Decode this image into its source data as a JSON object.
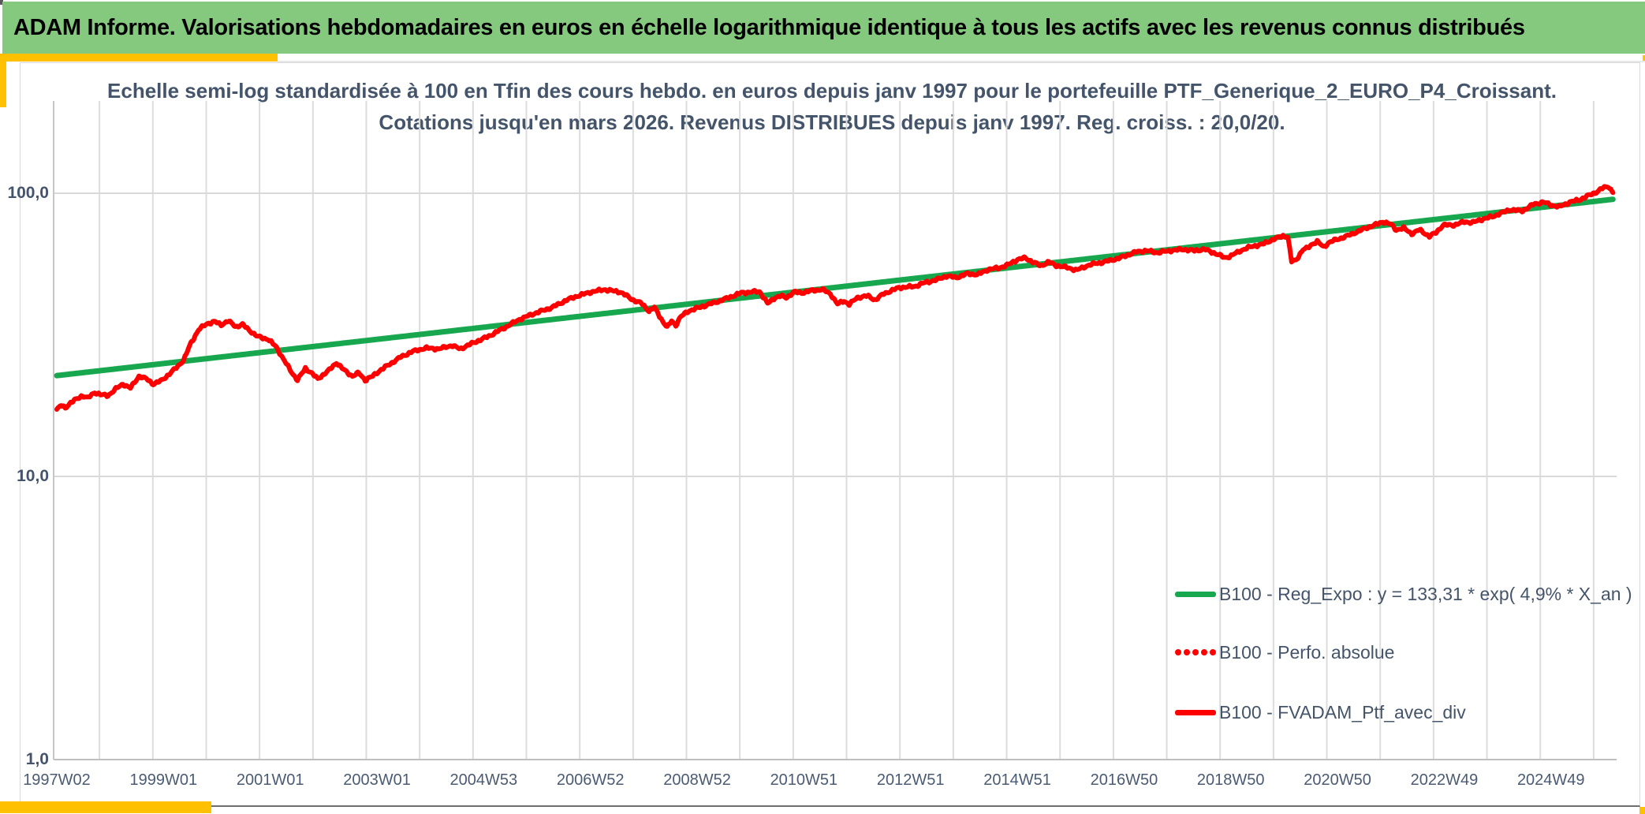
{
  "header": {
    "title": "ADAM Informe. Valorisations hebdomadaires en euros en échelle logarithmique identique à tous les actifs avec les revenus connus distribués"
  },
  "title": {
    "line1": "Echelle semi-log standardisée à 100 en Tfin des cours hebdo. en euros depuis janv 1997 pour le portefeuille PTF_Generique_2_EURO_P4_Croissant.",
    "line2": "Cotations jusqu'en mars 2026. Revenus DISTRIBUES depuis janv 1997. Reg. croiss. : 20,0/20."
  },
  "colors": {
    "header_bg": "#84C97E",
    "accent": "#FFC000",
    "title_text": "#44546A",
    "axis_text": "#4A5B73",
    "grid": "#DCDCDC",
    "grid_major_bottom": "#BFBFBF",
    "regression_green": "#17A74E",
    "series_red": "#FF0000"
  },
  "chart_data": {
    "type": "line",
    "title": "Echelle semi-log standardisée à 100 en Tfin des cours hebdo. en euros depuis janv 1997 pour le portefeuille PTF_Generique_2_EURO_P4_Croissant. Cotations jusqu'en mars 2026. Revenus DISTRIBUES depuis janv 1997. Reg. croiss. : 20,0/20.",
    "y_axis": {
      "scale": "log10",
      "tick_labels": [
        "100,0",
        "10,0",
        "1,0"
      ],
      "tick_values": [
        100,
        10,
        1
      ],
      "range": [
        1,
        130
      ],
      "grid": true
    },
    "x_axis": {
      "tick_labels": [
        "1997W02",
        "1999W01",
        "2001W01",
        "2003W01",
        "2004W53",
        "2006W52",
        "2008W52",
        "2010W51",
        "2012W51",
        "2014W51",
        "2016W50",
        "2018W50",
        "2020W50",
        "2022W49",
        "2024W49"
      ],
      "start_year": 1997.04,
      "end_year": 2026.2,
      "grid_interval_years": 1,
      "label_interval_years": 2
    },
    "legend_position": "right-center",
    "series": [
      {
        "name": "B100 - Reg_Expo : y = 133,31 * exp( 4,9% *  X_an )",
        "style": "solid",
        "color": "#17A74E",
        "points": [
          [
            1997.04,
            22.7
          ],
          [
            2026.2,
            95.2
          ]
        ]
      },
      {
        "name": "B100 - Perfo. absolue",
        "style": "dotted",
        "color": "#FF0000",
        "points": []
      },
      {
        "name": "B100 - FVADAM_Ptf_avec_div",
        "style": "solid",
        "color": "#FF0000",
        "points": [
          [
            1997.04,
            17.2
          ],
          [
            1997.12,
            17.8
          ],
          [
            1997.2,
            17.5
          ],
          [
            1997.3,
            18.2
          ],
          [
            1997.42,
            18.8
          ],
          [
            1997.52,
            19.3
          ],
          [
            1997.62,
            18.9
          ],
          [
            1997.75,
            19.8
          ],
          [
            1997.88,
            19.4
          ],
          [
            1998.0,
            19.3
          ],
          [
            1998.15,
            20.4
          ],
          [
            1998.28,
            21.2
          ],
          [
            1998.42,
            20.5
          ],
          [
            1998.58,
            22.6
          ],
          [
            1998.72,
            22.1
          ],
          [
            1998.85,
            21.2
          ],
          [
            1999.0,
            21.8
          ],
          [
            1999.15,
            23.0
          ],
          [
            1999.3,
            24.4
          ],
          [
            1999.42,
            25.8
          ],
          [
            1999.55,
            29.5
          ],
          [
            1999.7,
            33.0
          ],
          [
            1999.85,
            34.6
          ],
          [
            2000.0,
            35.2
          ],
          [
            2000.12,
            34.3
          ],
          [
            2000.25,
            35.4
          ],
          [
            2000.4,
            33.8
          ],
          [
            2000.52,
            34.4
          ],
          [
            2000.65,
            32.8
          ],
          [
            2000.8,
            31.2
          ],
          [
            2001.0,
            30.5
          ],
          [
            2001.15,
            28.7
          ],
          [
            2001.3,
            25.7
          ],
          [
            2001.45,
            23.2
          ],
          [
            2001.55,
            21.9
          ],
          [
            2001.7,
            24.1
          ],
          [
            2001.8,
            23.3
          ],
          [
            2001.93,
            22.1
          ],
          [
            2002.05,
            23.0
          ],
          [
            2002.14,
            23.7
          ],
          [
            2002.28,
            25.2
          ],
          [
            2002.43,
            23.7
          ],
          [
            2002.58,
            22.6
          ],
          [
            2002.7,
            23.2
          ],
          [
            2002.82,
            21.9
          ],
          [
            2002.96,
            22.6
          ],
          [
            2003.1,
            23.7
          ],
          [
            2003.25,
            24.7
          ],
          [
            2003.47,
            26.3
          ],
          [
            2003.7,
            27.6
          ],
          [
            2003.95,
            28.4
          ],
          [
            2004.2,
            28.2
          ],
          [
            2004.44,
            29.0
          ],
          [
            2004.6,
            28.2
          ],
          [
            2004.84,
            29.6
          ],
          [
            2005.14,
            31.3
          ],
          [
            2005.43,
            33.5
          ],
          [
            2005.73,
            36.0
          ],
          [
            2006.02,
            37.8
          ],
          [
            2006.32,
            39.5
          ],
          [
            2006.6,
            42.0
          ],
          [
            2006.8,
            43.4
          ],
          [
            2007.05,
            44.8
          ],
          [
            2007.3,
            45.7
          ],
          [
            2007.6,
            44.8
          ],
          [
            2007.84,
            42.0
          ],
          [
            2008.0,
            40.8
          ],
          [
            2008.14,
            38.4
          ],
          [
            2008.24,
            39.5
          ],
          [
            2008.39,
            35.4
          ],
          [
            2008.48,
            33.6
          ],
          [
            2008.56,
            35.4
          ],
          [
            2008.64,
            34.2
          ],
          [
            2008.73,
            36.6
          ],
          [
            2008.88,
            38.4
          ],
          [
            2009.08,
            39.5
          ],
          [
            2009.27,
            40.6
          ],
          [
            2009.47,
            41.7
          ],
          [
            2009.67,
            43.1
          ],
          [
            2009.87,
            44.5
          ],
          [
            2010.06,
            44.8
          ],
          [
            2010.21,
            45.0
          ],
          [
            2010.36,
            40.8
          ],
          [
            2010.5,
            42.8
          ],
          [
            2010.61,
            43.4
          ],
          [
            2010.71,
            42.8
          ],
          [
            2010.86,
            44.8
          ],
          [
            2011.0,
            44.5
          ],
          [
            2011.2,
            45.4
          ],
          [
            2011.39,
            45.7
          ],
          [
            2011.54,
            44.1
          ],
          [
            2011.67,
            40.6
          ],
          [
            2011.79,
            41.7
          ],
          [
            2011.89,
            40.5
          ],
          [
            2012.04,
            42.8
          ],
          [
            2012.23,
            43.4
          ],
          [
            2012.38,
            42.0
          ],
          [
            2012.53,
            44.1
          ],
          [
            2012.82,
            46.4
          ],
          [
            2013.12,
            46.9
          ],
          [
            2013.31,
            48.4
          ],
          [
            2013.52,
            49.4
          ],
          [
            2013.71,
            51.0
          ],
          [
            2013.9,
            50.4
          ],
          [
            2014.11,
            52.0
          ],
          [
            2014.3,
            51.6
          ],
          [
            2014.49,
            53.8
          ],
          [
            2014.7,
            54.5
          ],
          [
            2014.85,
            55.7
          ],
          [
            2015.04,
            58.3
          ],
          [
            2015.19,
            59.1
          ],
          [
            2015.33,
            57.2
          ],
          [
            2015.48,
            55.4
          ],
          [
            2015.63,
            57.2
          ],
          [
            2015.75,
            55.7
          ],
          [
            2016.0,
            54.5
          ],
          [
            2016.15,
            53.5
          ],
          [
            2016.35,
            55.5
          ],
          [
            2016.5,
            56.5
          ],
          [
            2016.67,
            57.2
          ],
          [
            2016.96,
            59.1
          ],
          [
            2017.26,
            62.0
          ],
          [
            2017.45,
            62.7
          ],
          [
            2017.66,
            61.7
          ],
          [
            2017.9,
            62.7
          ],
          [
            2018.15,
            63.4
          ],
          [
            2018.34,
            62.7
          ],
          [
            2018.55,
            63.4
          ],
          [
            2018.74,
            61.4
          ],
          [
            2018.93,
            59.2
          ],
          [
            2019.03,
            59.9
          ],
          [
            2019.22,
            62.7
          ],
          [
            2019.43,
            64.9
          ],
          [
            2019.62,
            65.9
          ],
          [
            2019.81,
            68.4
          ],
          [
            2020.02,
            70.8
          ],
          [
            2020.11,
            70.0
          ],
          [
            2020.18,
            57.4
          ],
          [
            2020.26,
            58.1
          ],
          [
            2020.39,
            63.1
          ],
          [
            2020.48,
            64.1
          ],
          [
            2020.55,
            65.9
          ],
          [
            2020.66,
            67.5
          ],
          [
            2020.78,
            64.6
          ],
          [
            2020.88,
            67.0
          ],
          [
            2021.0,
            68.4
          ],
          [
            2021.2,
            70.4
          ],
          [
            2021.4,
            73.0
          ],
          [
            2021.59,
            75.6
          ],
          [
            2021.74,
            77.2
          ],
          [
            2021.89,
            79.3
          ],
          [
            2022.04,
            77.7
          ],
          [
            2022.14,
            74.3
          ],
          [
            2022.28,
            75.3
          ],
          [
            2022.43,
            72.0
          ],
          [
            2022.58,
            74.3
          ],
          [
            2022.76,
            70.4
          ],
          [
            2022.88,
            72.5
          ],
          [
            2023.02,
            77.2
          ],
          [
            2023.22,
            77.2
          ],
          [
            2023.42,
            79.3
          ],
          [
            2023.57,
            78.8
          ],
          [
            2023.76,
            81.1
          ],
          [
            2023.96,
            82.8
          ],
          [
            2024.06,
            84.5
          ],
          [
            2024.28,
            87.5
          ],
          [
            2024.5,
            86.6
          ],
          [
            2024.72,
            91.5
          ],
          [
            2024.9,
            93.0
          ],
          [
            2025.05,
            90.8
          ],
          [
            2025.19,
            89.5
          ],
          [
            2025.39,
            93.0
          ],
          [
            2025.58,
            94.9
          ],
          [
            2025.73,
            97.9
          ],
          [
            2025.87,
            100.5
          ],
          [
            2026.02,
            104.5
          ],
          [
            2026.12,
            105.8
          ],
          [
            2026.2,
            100.5
          ]
        ]
      }
    ]
  }
}
